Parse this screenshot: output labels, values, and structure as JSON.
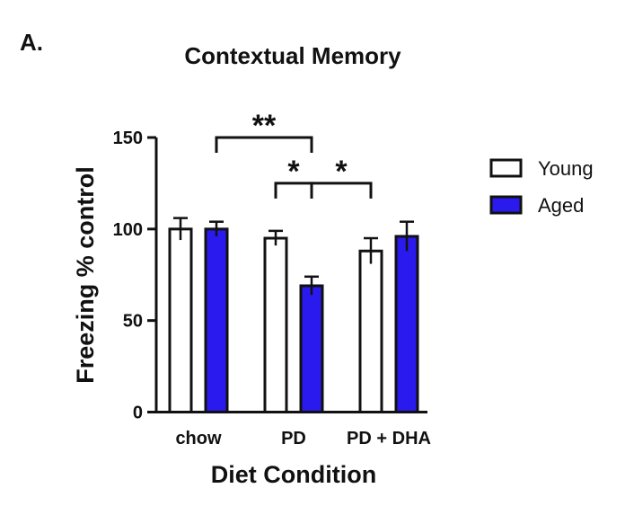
{
  "panel_label": "A.",
  "chart_data": {
    "type": "bar",
    "title": "Contextual Memory",
    "xlabel": "Diet Condition",
    "ylabel": "Freezing % control",
    "ylim": [
      0,
      150
    ],
    "yticks": [
      0,
      50,
      100,
      150
    ],
    "categories": [
      "chow",
      "PD",
      "PD + DHA"
    ],
    "series": [
      {
        "name": "Young",
        "color": "#ffffff",
        "values": [
          100,
          95,
          88
        ],
        "errors": [
          6,
          4,
          7
        ]
      },
      {
        "name": "Aged",
        "color": "#2a1aee",
        "values": [
          100,
          69,
          96
        ],
        "errors": [
          4,
          5,
          8
        ]
      }
    ],
    "legend_position": "right",
    "grid": false,
    "significance": [
      {
        "label": "**",
        "from": {
          "category": 0,
          "series": 1
        },
        "to": {
          "category": 1,
          "series": 1
        },
        "level": 150
      },
      {
        "label": "*",
        "from": {
          "category": 1,
          "series": 0
        },
        "to": {
          "category": 1,
          "series": 1
        },
        "level": 125
      },
      {
        "label": "*",
        "from": {
          "category": 1,
          "series": 1
        },
        "to": {
          "category": 2,
          "series": 0
        },
        "level": 125
      }
    ]
  }
}
